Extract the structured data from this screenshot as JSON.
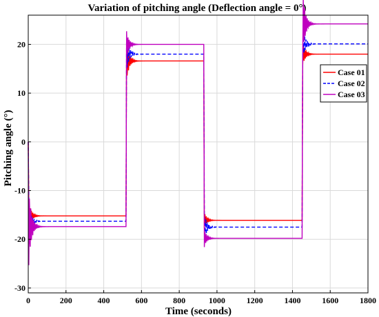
{
  "chart_data": {
    "type": "line",
    "title": "Variation of pitching angle (Deflection angle = 0°)",
    "xlabel": "Time (seconds)",
    "ylabel": "Pitching angle (°)",
    "xlim": [
      0,
      1800
    ],
    "ylim": [
      -31,
      26
    ],
    "xticks": [
      0,
      200,
      400,
      600,
      800,
      1000,
      1200,
      1400,
      1600,
      1800
    ],
    "yticks": [
      -30,
      -20,
      -10,
      0,
      10,
      20
    ],
    "grid": true,
    "legend_position": "right",
    "steps": [
      {
        "start": 0,
        "end": 510
      },
      {
        "start": 518,
        "end": 922
      },
      {
        "start": 930,
        "end": 1443
      },
      {
        "start": 1451,
        "end": 1800
      }
    ],
    "series": [
      {
        "name": "Case 01",
        "color": "#ff0000",
        "style": "solid",
        "levels": [
          -15.2,
          16.6,
          -16.1,
          18.0
        ],
        "overshoots": [
          -12.2,
          20.7,
          -17.8,
          15.4
        ]
      },
      {
        "name": "Case 02",
        "color": "#0000ff",
        "style": "dashed",
        "levels": [
          -16.3,
          18.0,
          -17.5,
          20.1
        ],
        "overshoots": [
          -13.0,
          21.7,
          -14.5,
          16.5
        ]
      },
      {
        "name": "Case 03",
        "color": "#bf00bf",
        "style": "solid",
        "levels": [
          -17.4,
          20.0,
          -19.8,
          24.2
        ],
        "overshoots": [
          -25.3,
          22.7,
          -21.6,
          17.2
        ]
      }
    ]
  }
}
